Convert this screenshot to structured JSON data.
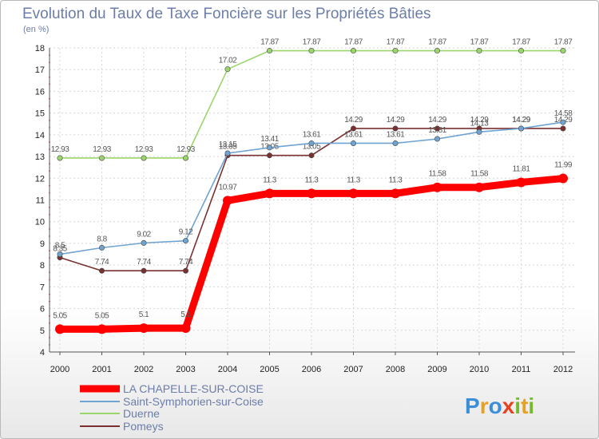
{
  "chart_data": {
    "type": "line",
    "title": "Evolution du Taux de Taxe Foncière sur les Propriétés Bâties",
    "ylabel": "(en %)",
    "xlabel": "",
    "ylim": [
      4,
      18
    ],
    "yticks": [
      "4",
      "5",
      "6",
      "7",
      "8",
      "9",
      "10",
      "11",
      "12",
      "13",
      "14",
      "15",
      "16",
      "17",
      "18"
    ],
    "categories": [
      "2000",
      "2001",
      "2002",
      "2003",
      "2004",
      "2005",
      "2006",
      "2007",
      "2008",
      "2009",
      "2010",
      "2011",
      "2012"
    ],
    "series": [
      {
        "name": "LA CHAPELLE-SUR-COISE",
        "color": "#ff0000",
        "values": [
          5.05,
          5.05,
          5.1,
          5.1,
          10.97,
          11.3,
          11.3,
          11.3,
          11.3,
          11.58,
          11.58,
          11.81,
          11.99
        ],
        "labels": [
          "5.05",
          "5.05",
          "5.1",
          "5.1",
          "10.97",
          "11.3",
          "11.3",
          "11.3",
          "11.3",
          "11.58",
          "11.58",
          "11.81",
          "11.99"
        ]
      },
      {
        "name": "Saint-Symphorien-sur-Coise",
        "color": "#6fa3d1",
        "values": [
          8.5,
          8.8,
          9.02,
          9.12,
          13.15,
          13.41,
          13.61,
          13.61,
          13.61,
          13.81,
          14.13,
          14.29,
          14.58
        ],
        "labels": [
          "8.5",
          "8.8",
          "9.02",
          "9.12",
          "13.15",
          "13.41",
          "13.61",
          "13.61",
          "13.61",
          "13.81",
          "14.13",
          "14.29",
          "14.58"
        ]
      },
      {
        "name": "Duerne",
        "color": "#9ad66c",
        "values": [
          12.93,
          12.93,
          12.93,
          12.93,
          17.02,
          17.87,
          17.87,
          17.87,
          17.87,
          17.87,
          17.87,
          17.87,
          17.87
        ],
        "labels": [
          "12.93",
          "12.93",
          "12.93",
          "12.93",
          "17.02",
          "17.87",
          "17.87",
          "17.87",
          "17.87",
          "17.87",
          "17.87",
          "17.87",
          "17.87"
        ]
      },
      {
        "name": "Pomeys",
        "color": "#7a3030",
        "values": [
          8.35,
          7.74,
          7.74,
          7.74,
          13.05,
          13.05,
          13.05,
          14.29,
          14.29,
          14.29,
          14.29,
          14.29,
          14.29
        ],
        "labels": [
          "8.35",
          "7.74",
          "7.74",
          "7.74",
          "13.05",
          "13.05",
          "13.05",
          "14.29",
          "14.29",
          "14.29",
          "14.29",
          "14.29",
          "14.29"
        ]
      }
    ],
    "legend": "bottom-left"
  },
  "brand": {
    "letters": [
      "P",
      "r",
      "o",
      "x",
      "i",
      "t",
      "i"
    ],
    "colors": [
      "#3a8fd8",
      "#e8a020",
      "#3a8fd8",
      "#e84020",
      "#78b830",
      "#e8a020",
      "#78b830"
    ]
  }
}
